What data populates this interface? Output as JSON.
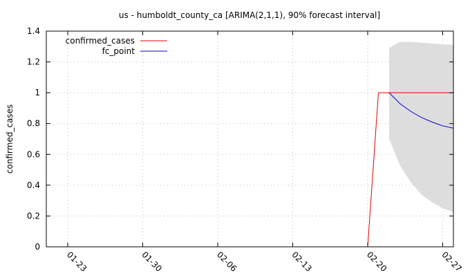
{
  "chart_data": {
    "type": "line",
    "title": "us - humboldt_county_ca [ARIMA(2,1,1), 90% forecast interval]",
    "xlabel": "",
    "ylabel": "confirmed_cases",
    "x_axis": {
      "type": "date",
      "range": [
        "2020-01-21",
        "2020-02-28"
      ],
      "tick_labels": [
        "01-23",
        "01-30",
        "02-06",
        "02-13",
        "02-20",
        "02-27"
      ],
      "tick_dates": [
        "2020-01-23",
        "2020-01-30",
        "2020-02-06",
        "2020-02-13",
        "2020-02-20",
        "2020-02-27"
      ]
    },
    "ylim": [
      0,
      1.4
    ],
    "y_ticks": [
      0,
      0.2,
      0.4,
      0.6,
      0.8,
      1,
      1.2,
      1.4
    ],
    "y_tick_labels": [
      "0",
      "0.2",
      "0.4",
      "0.6",
      "0.8",
      "1",
      "1.2",
      "1.4"
    ],
    "grid": true,
    "legend_position": "top-left",
    "series": [
      {
        "name": "confirmed_cases",
        "color": "#e00000",
        "points": [
          {
            "x": "2020-02-20",
            "y": 0
          },
          {
            "x": "2020-02-21",
            "y": 1
          },
          {
            "x": "2020-02-22",
            "y": 1
          },
          {
            "x": "2020-02-23",
            "y": 1
          },
          {
            "x": "2020-02-24",
            "y": 1
          },
          {
            "x": "2020-02-25",
            "y": 1
          },
          {
            "x": "2020-02-26",
            "y": 1
          },
          {
            "x": "2020-02-27",
            "y": 1
          },
          {
            "x": "2020-02-28",
            "y": 1
          }
        ]
      },
      {
        "name": "fc_point",
        "color": "#0000e0",
        "points": [
          {
            "x": "2020-02-22",
            "y": 1.0
          },
          {
            "x": "2020-02-23",
            "y": 0.93
          },
          {
            "x": "2020-02-24",
            "y": 0.88
          },
          {
            "x": "2020-02-25",
            "y": 0.84
          },
          {
            "x": "2020-02-26",
            "y": 0.81
          },
          {
            "x": "2020-02-27",
            "y": 0.785
          },
          {
            "x": "2020-02-28",
            "y": 0.77
          }
        ]
      }
    ],
    "forecast_interval": {
      "color": "#dddddd",
      "points": [
        {
          "x": "2020-02-22",
          "lower": 0.7,
          "upper": 1.29
        },
        {
          "x": "2020-02-23",
          "lower": 0.53,
          "upper": 1.33
        },
        {
          "x": "2020-02-24",
          "lower": 0.42,
          "upper": 1.33
        },
        {
          "x": "2020-02-25",
          "lower": 0.34,
          "upper": 1.325
        },
        {
          "x": "2020-02-26",
          "lower": 0.29,
          "upper": 1.32
        },
        {
          "x": "2020-02-27",
          "lower": 0.25,
          "upper": 1.315
        },
        {
          "x": "2020-02-28",
          "lower": 0.225,
          "upper": 1.31
        }
      ]
    }
  }
}
